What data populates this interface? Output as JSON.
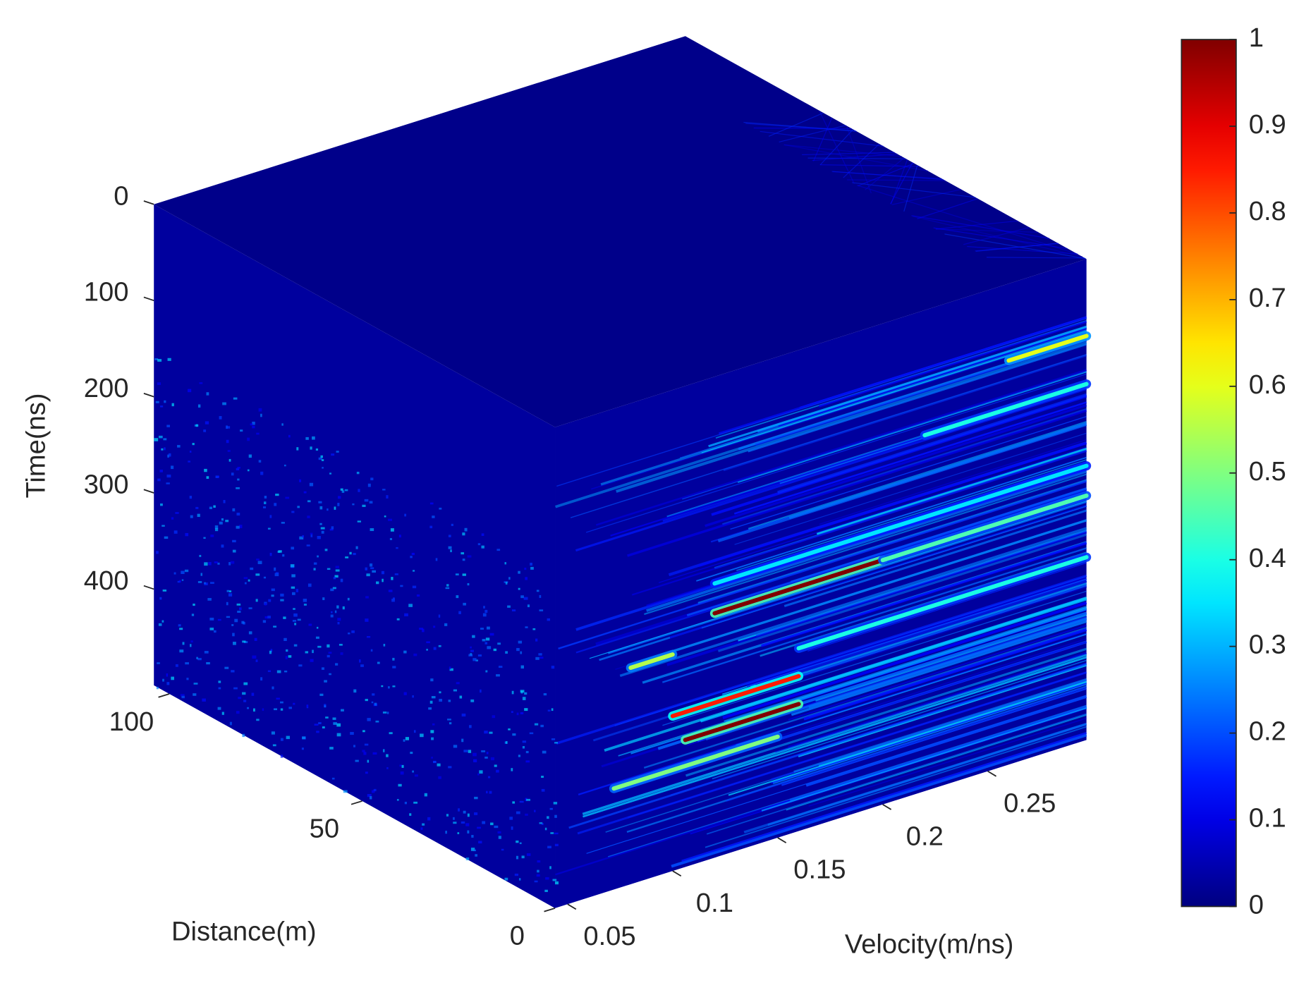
{
  "chart_data": {
    "type": "volume",
    "colormap": "jet",
    "xlabel": "Distance(m)",
    "ylabel": "Velocity(m/ns)",
    "zlabel": "Time(ns)",
    "xlim": [
      0,
      104
    ],
    "xticks": [
      0,
      50,
      100
    ],
    "ylim": [
      0.044,
      0.297
    ],
    "yticks": [
      0.05,
      0.1,
      0.15,
      0.2,
      0.25
    ],
    "zlim": [
      0,
      500
    ],
    "zticks": [
      0,
      100,
      200,
      300,
      400
    ],
    "clim": [
      0,
      1
    ],
    "cticks": [
      0,
      0.1,
      0.2,
      0.3,
      0.4,
      0.5,
      0.6,
      0.7,
      0.8,
      0.9,
      1
    ],
    "streaks": [
      {
        "velocity": [
          0.12,
          0.2
        ],
        "time": 246,
        "value": 1
      },
      {
        "velocity": [
          0.2,
          0.297
        ],
        "time": 246,
        "value": 0.45
      },
      {
        "velocity": [
          0.106,
          0.16
        ],
        "time": 368,
        "value": 1
      },
      {
        "velocity": [
          0.1,
          0.16
        ],
        "time": 339,
        "value": 0.85
      },
      {
        "velocity": [
          0.26,
          0.297
        ],
        "time": 80,
        "value": 0.6
      },
      {
        "velocity": [
          0.072,
          0.15
        ],
        "time": 395,
        "value": 0.5
      },
      {
        "velocity": [
          0.16,
          0.297
        ],
        "time": 310,
        "value": 0.4
      },
      {
        "velocity": [
          0.22,
          0.297
        ],
        "time": 130,
        "value": 0.4
      },
      {
        "velocity": [
          0.12,
          0.297
        ],
        "time": 215,
        "value": 0.35
      },
      {
        "velocity": [
          0.08,
          0.1
        ],
        "time": 275,
        "value": 0.55
      }
    ]
  }
}
